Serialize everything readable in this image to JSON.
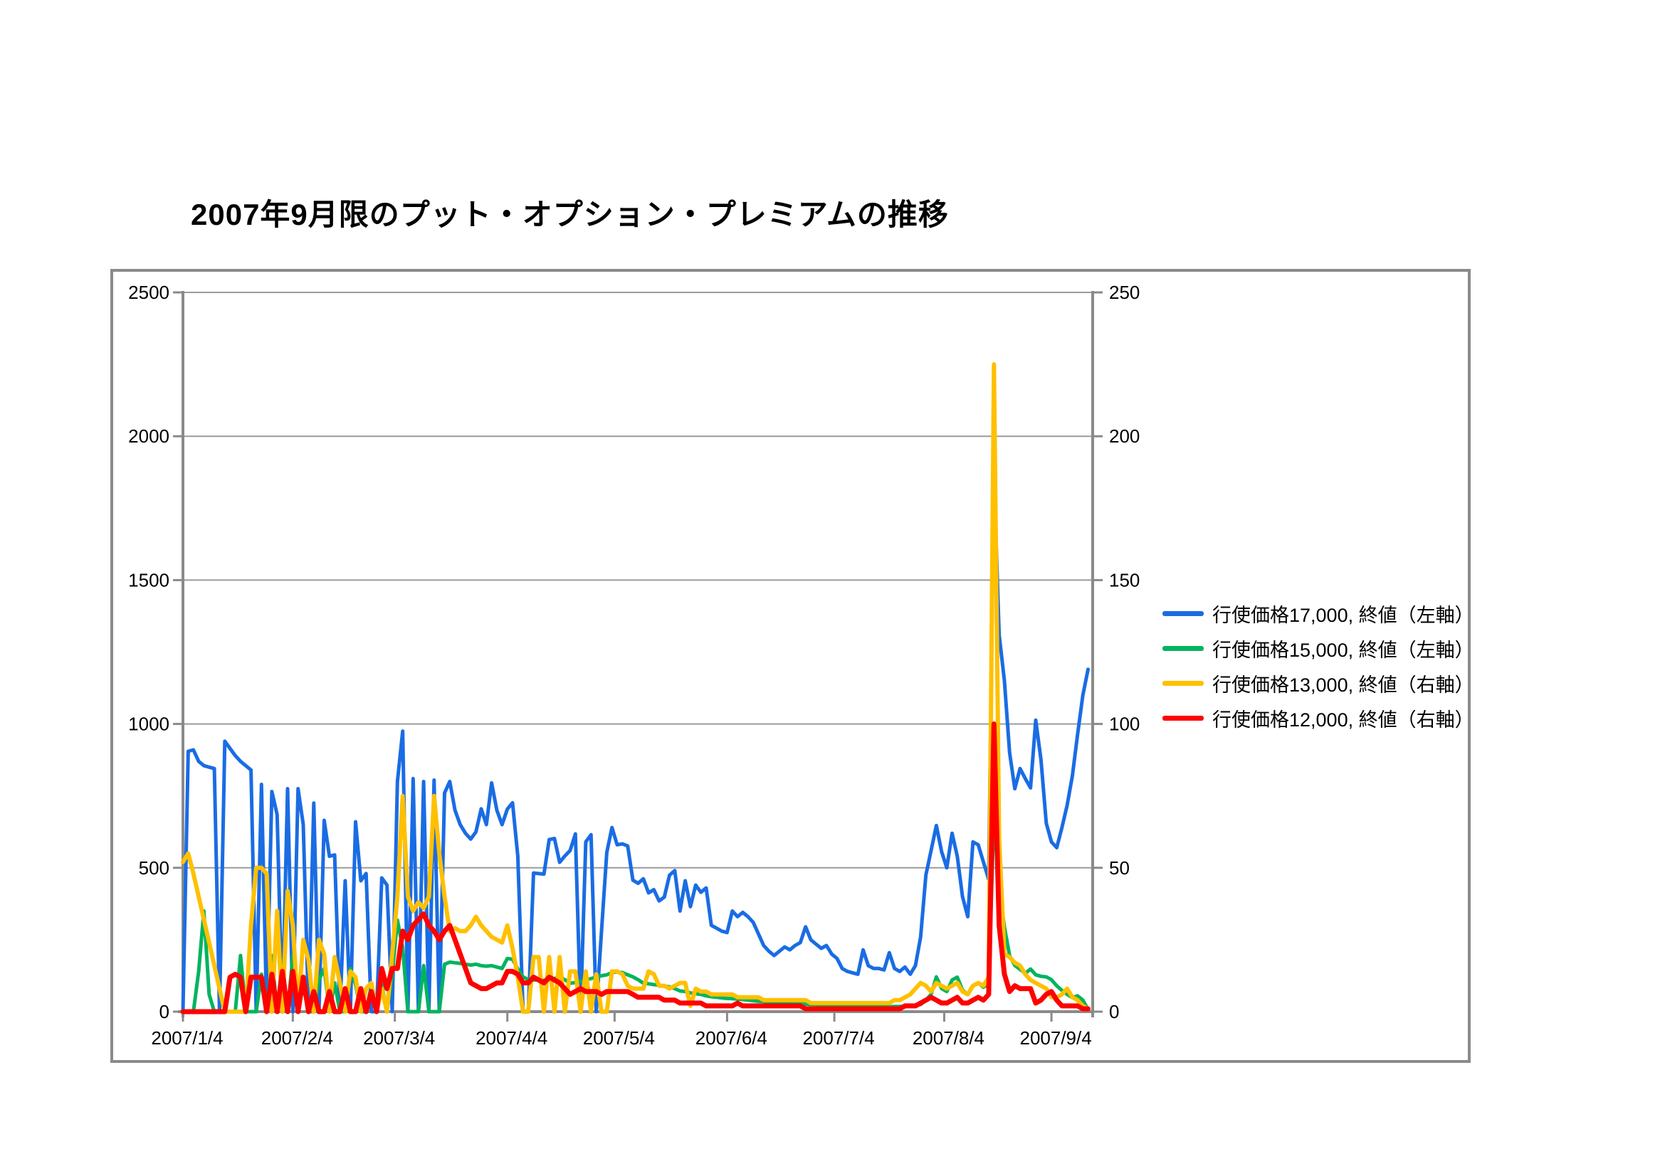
{
  "title": "2007年9月限のプット・オプション・プレミアムの推移",
  "colors": {
    "background": "#FFFFFF",
    "text": "#000000",
    "grid": "#9B9B9B",
    "axis": "#8A8A8A",
    "frame_border": "#8A8A8A"
  },
  "chart_data": {
    "type": "line",
    "title": "2007年9月限のプット・オプション・プレミアムの推移",
    "grid": true,
    "legend_position": "right",
    "x_tick_labels": [
      "2007/1/4",
      "2007/2/4",
      "2007/3/4",
      "2007/4/4",
      "2007/5/4",
      "2007/6/4",
      "2007/7/4",
      "2007/8/4",
      "2007/9/4"
    ],
    "x_tick_day_positions": [
      0,
      21,
      40.5,
      62,
      82.5,
      104,
      124.5,
      145.5,
      166
    ],
    "left_axis": {
      "tick_labels": [
        "0",
        "500",
        "1000",
        "1500",
        "2000",
        "2500"
      ],
      "range": [
        0,
        2500
      ]
    },
    "right_axis": {
      "tick_labels": [
        "0",
        "50",
        "100",
        "150",
        "200",
        "250"
      ],
      "range": [
        0,
        250
      ]
    },
    "series": [
      {
        "name": "行使価格17,000, 終値（左軸）",
        "axis": "left",
        "color": "#1A6CE4",
        "width": 5,
        "values": [
          0,
          905,
          910,
          870,
          855,
          850,
          845,
          0,
          940,
          915,
          890,
          870,
          855,
          840,
          0,
          790,
          0,
          765,
          685,
          0,
          775,
          0,
          775,
          650,
          0,
          725,
          0,
          665,
          540,
          545,
          0,
          455,
          0,
          660,
          455,
          480,
          0,
          0,
          465,
          440,
          0,
          800,
          975,
          0,
          810,
          0,
          800,
          0,
          805,
          0,
          760,
          800,
          700,
          650,
          620,
          600,
          625,
          705,
          650,
          795,
          700,
          650,
          704,
          726,
          541,
          0,
          0,
          482,
          480,
          478,
          598,
          602,
          519,
          541,
          560,
          618,
          0,
          590,
          615,
          0,
          280,
          553,
          640,
          580,
          583,
          576,
          457,
          446,
          462,
          413,
          424,
          385,
          398,
          474,
          490,
          350,
          455,
          365,
          440,
          415,
          430,
          300,
          290,
          280,
          275,
          350,
          330,
          345,
          330,
          310,
          270,
          230,
          210,
          195,
          210,
          225,
          215,
          230,
          240,
          295,
          250,
          235,
          220,
          230,
          200,
          185,
          150,
          140,
          135,
          130,
          215,
          160,
          150,
          150,
          145,
          205,
          150,
          140,
          155,
          130,
          160,
          260,
          475,
          560,
          647,
          556,
          500,
          620,
          540,
          400,
          330,
          590,
          580,
          520,
          460,
          1870,
          1310,
          1150,
          900,
          775,
          845,
          810,
          778,
          1013,
          875,
          655,
          590,
          570,
          640,
          717,
          820,
          964,
          1100,
          1190
        ]
      },
      {
        "name": "行使価格15,000, 終値（左軸）",
        "axis": "left",
        "color": "#00B45F",
        "width": 5,
        "values": [
          0,
          0,
          0,
          140,
          350,
          60,
          0,
          0,
          0,
          0,
          0,
          195,
          0,
          0,
          0,
          130,
          0,
          195,
          0,
          178,
          0,
          195,
          0,
          90,
          0,
          0,
          110,
          150,
          0,
          100,
          0,
          0,
          150,
          95,
          0,
          0,
          90,
          0,
          95,
          0,
          130,
          318,
          222,
          0,
          0,
          0,
          160,
          0,
          0,
          0,
          165,
          172,
          170,
          168,
          165,
          162,
          165,
          160,
          158,
          160,
          155,
          150,
          185,
          182,
          148,
          121,
          111,
          110,
          110,
          109,
          110,
          115,
          121,
          111,
          99,
          101,
          105,
          110,
          115,
          120,
          125,
          128,
          136,
          138,
          136,
          128,
          121,
          111,
          99,
          97,
          94,
          92,
          89,
          86,
          80,
          72,
          70,
          65,
          62,
          60,
          55,
          52,
          50,
          48,
          46,
          45,
          44,
          42,
          40,
          38,
          36,
          35,
          33,
          32,
          30,
          30,
          28,
          28,
          27,
          26,
          25,
          25,
          24,
          24,
          23,
          22,
          21,
          20,
          20,
          19,
          19,
          18,
          18,
          18,
          17,
          17,
          18,
          18,
          19,
          20,
          22,
          25,
          40,
          60,
          121,
          80,
          70,
          110,
          120,
          75,
          60,
          90,
          100,
          85,
          95,
          680,
          425,
          294,
          195,
          161,
          147,
          133,
          148,
          128,
          123,
          121,
          111,
          90,
          74,
          60,
          49,
          55,
          40,
          8
        ]
      },
      {
        "name": "行使価格13,000, 終値（右軸）",
        "axis": "right",
        "color": "#FFC000",
        "width": 6,
        "values": [
          52,
          55,
          48,
          40,
          32,
          24,
          16,
          8,
          0,
          0,
          0,
          0,
          0,
          30,
          50,
          50,
          48,
          0,
          35,
          0,
          42,
          30,
          0,
          25,
          18,
          0,
          25,
          20,
          0,
          19,
          10,
          0,
          14,
          12,
          0,
          8,
          10,
          0,
          8,
          0,
          20,
          40,
          75,
          40,
          35,
          38,
          36,
          40,
          75,
          55,
          40,
          28,
          29,
          28,
          28,
          30,
          33,
          30,
          28,
          26,
          25,
          24,
          30,
          22,
          12,
          0,
          0,
          19,
          19,
          0,
          19,
          0,
          19,
          0,
          14,
          14,
          0,
          14,
          0,
          13,
          0,
          0,
          14,
          14,
          13,
          9,
          8,
          8,
          8,
          14,
          13,
          9,
          9,
          8,
          9,
          10,
          10,
          2,
          8,
          7,
          7,
          6,
          6,
          6,
          6,
          6,
          5,
          5,
          5,
          5,
          5,
          4,
          4,
          4,
          4,
          4,
          4,
          4,
          4,
          4,
          3,
          3,
          3,
          3,
          3,
          3,
          3,
          3,
          3,
          3,
          3,
          3,
          3,
          3,
          3,
          3,
          4,
          4,
          5,
          6,
          8,
          10,
          9,
          7,
          10,
          9,
          8,
          9,
          10,
          7,
          6,
          9,
          10,
          9,
          12,
          225,
          60,
          20,
          19,
          17,
          16,
          13,
          11,
          10,
          9,
          8,
          5,
          5,
          6,
          8,
          5,
          4,
          2,
          1
        ]
      },
      {
        "name": "行使価格12,000, 終値（右軸）",
        "axis": "right",
        "color": "#FF0000",
        "width": 7,
        "values": [
          0,
          0,
          0,
          0,
          0,
          0,
          0,
          0,
          0,
          12,
          13,
          12,
          0,
          12,
          12,
          12,
          0,
          13,
          0,
          14,
          0,
          14,
          0,
          12,
          0,
          7,
          0,
          0,
          7,
          0,
          0,
          8,
          0,
          0,
          8,
          0,
          7,
          0,
          15,
          8,
          15,
          15,
          28,
          25,
          30,
          32,
          34,
          30,
          28,
          25,
          28,
          30,
          25,
          20,
          15,
          10,
          9,
          8,
          8,
          9,
          10,
          10,
          14,
          14,
          13,
          10,
          10,
          12,
          11,
          10,
          12,
          11,
          10,
          8,
          6,
          7,
          8,
          7,
          7,
          7,
          6,
          7,
          7,
          7,
          7,
          7,
          6,
          5,
          5,
          5,
          5,
          5,
          4,
          4,
          4,
          3,
          3,
          3,
          3,
          3,
          2,
          2,
          2,
          2,
          2,
          2,
          3,
          2,
          2,
          2,
          2,
          2,
          2,
          2,
          2,
          2,
          2,
          2,
          2,
          1,
          1,
          1,
          1,
          1,
          1,
          1,
          1,
          1,
          1,
          1,
          1,
          1,
          1,
          1,
          1,
          1,
          1,
          1,
          2,
          2,
          2,
          3,
          4,
          5,
          4,
          3,
          3,
          4,
          5,
          3,
          3,
          4,
          5,
          4,
          6,
          100,
          30,
          13,
          7,
          9,
          8,
          8,
          8,
          3,
          4,
          6,
          7,
          4,
          2,
          2,
          2,
          2,
          1,
          1
        ]
      }
    ]
  }
}
